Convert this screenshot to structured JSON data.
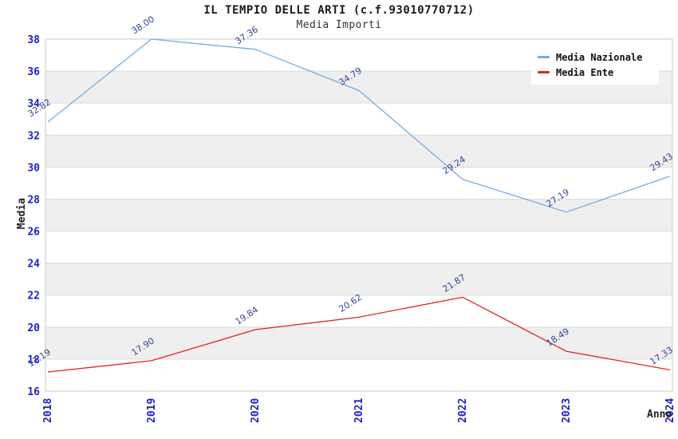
{
  "chart_data": {
    "type": "line",
    "title": "IL TEMPIO DELLE ARTI (c.f.93010770712)",
    "subtitle": "Media Importi",
    "xlabel": "Anno",
    "ylabel": "Media",
    "categories": [
      "2018",
      "2019",
      "2020",
      "2021",
      "2022",
      "2023",
      "2024"
    ],
    "series": [
      {
        "name": "Media Nazionale",
        "color": "#74ADE2",
        "values": [
          32.82,
          38.0,
          37.36,
          34.79,
          29.24,
          27.19,
          29.43
        ]
      },
      {
        "name": "Media Ente",
        "color": "#E62222",
        "values": [
          17.19,
          17.9,
          19.84,
          20.62,
          21.87,
          18.49,
          17.33
        ]
      }
    ],
    "ylim": [
      16,
      38
    ],
    "ytick_step": 2,
    "grid": true,
    "legend_position": "top-right",
    "point_labels_decimals": 2,
    "colors": {
      "tick_label": "#2020CC",
      "point_label": "#36459B",
      "band": "#EFEFEF",
      "grid": "#DCDCDC",
      "frame": "#C8C8C8",
      "title": "#1a1a1a"
    }
  }
}
